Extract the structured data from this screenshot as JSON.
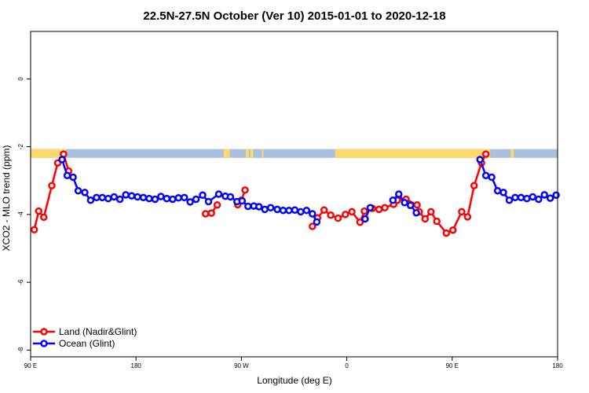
{
  "chart_data": {
    "type": "line",
    "title": "22.5N-27.5N October (Ver 10)   2015-01-01 to 2020-12-18",
    "xlabel": "Longitude (deg E)",
    "ylabel": "XCO2 - MLO trend (ppm)",
    "xlim": [
      90,
      450
    ],
    "ylim": [
      -8.2,
      1.4
    ],
    "x_ticks": [
      {
        "value": 90,
        "label": "90 E"
      },
      {
        "value": 162,
        "label": "180"
      },
      {
        "value": 234,
        "label": "90 W"
      },
      {
        "value": 306,
        "label": "0"
      },
      {
        "value": 378,
        "label": "90 E"
      },
      {
        "value": 450,
        "label": "180"
      }
    ],
    "y_ticks": [
      {
        "value": 0,
        "label": "0"
      },
      {
        "value": -2,
        "label": "-2"
      },
      {
        "value": -4,
        "label": "-4"
      },
      {
        "value": -6,
        "label": "-6"
      },
      {
        "value": -8,
        "label": "-8"
      }
    ],
    "land_band": {
      "y_top": -2.07,
      "y_bottom": -2.33,
      "ocean_color": "#a9c0de",
      "land_color": "#ffd96b",
      "land_ranges": [
        [
          90,
          114
        ],
        [
          222,
          226
        ],
        [
          237,
          239
        ],
        [
          240,
          242
        ],
        [
          248,
          249
        ],
        [
          298,
          370
        ],
        [
          370,
          378
        ],
        [
          378,
          404
        ],
        [
          418,
          420
        ]
      ]
    },
    "legend_position": "bottom-left",
    "series": [
      {
        "name": "Land (Nadir&Glint)",
        "color": "#ff0000",
        "x": [
          92.5,
          95.5,
          99.0,
          104.5,
          108.5,
          112.5,
          116.0,
          209.5,
          213.5,
          217.5,
          231.5,
          234.0,
          236.5,
          282.5,
          286.0,
          290.5,
          295.0,
          300.0,
          305.0,
          309.5,
          315.0,
          318.0,
          323.5,
          328.0,
          332.0,
          338.0,
          340.5,
          346.5,
          354.0,
          355.5,
          359.5,
          363.5,
          367.5,
          374.0,
          378.5,
          384.5,
          388.5,
          393.0,
          398.0,
          401.0
        ],
        "y": [
          -4.45,
          -3.9,
          -4.08,
          -3.15,
          -2.48,
          -2.22,
          -2.72,
          -3.98,
          -3.96,
          -3.72,
          -3.71,
          -3.58,
          -3.28,
          -4.35,
          -4.1,
          -3.87,
          -4.02,
          -4.11,
          -4.0,
          -3.92,
          -4.23,
          -3.9,
          -3.82,
          -3.85,
          -3.8,
          -3.7,
          -3.58,
          -3.55,
          -3.72,
          -3.92,
          -4.13,
          -3.92,
          -4.2,
          -4.55,
          -4.46,
          -3.92,
          -4.07,
          -3.15,
          -2.48,
          -2.22
        ]
      },
      {
        "name": "Ocean (Glint)",
        "color": "#0000ff",
        "x": [
          111.5,
          115.0,
          119.0,
          122.5,
          127.0,
          131.0,
          135.0,
          139.0,
          143.0,
          147.0,
          151.0,
          155.0,
          159.0,
          163.0,
          167.0,
          171.0,
          175.0,
          179.0,
          183.0,
          187.0,
          191.0,
          195.0,
          199.0,
          203.0,
          207.5,
          211.5,
          218.5,
          223.0,
          226.5,
          231.0,
          234.5,
          238.5,
          242.5,
          246.0,
          250.0,
          254.0,
          258.5,
          262.5,
          266.5,
          270.5,
          274.5,
          278.5,
          282.5,
          285.5,
          318.5,
          322.0,
          337.5,
          341.5,
          345.5,
          349.5,
          353.5,
          397.0,
          401.0,
          405.0,
          409.0,
          413.0,
          417.0,
          421.0,
          425.0,
          429.0,
          433.0,
          437.0,
          441.0,
          445.0,
          449.0
        ],
        "y": [
          -2.38,
          -2.85,
          -2.9,
          -3.3,
          -3.35,
          -3.58,
          -3.5,
          -3.5,
          -3.53,
          -3.48,
          -3.55,
          -3.42,
          -3.45,
          -3.48,
          -3.5,
          -3.53,
          -3.55,
          -3.47,
          -3.53,
          -3.55,
          -3.51,
          -3.5,
          -3.63,
          -3.55,
          -3.43,
          -3.62,
          -3.4,
          -3.46,
          -3.48,
          -3.62,
          -3.6,
          -3.76,
          -3.75,
          -3.77,
          -3.85,
          -3.8,
          -3.85,
          -3.88,
          -3.88,
          -3.87,
          -3.92,
          -3.88,
          -3.98,
          -4.22,
          -4.13,
          -3.8,
          -3.58,
          -3.4,
          -3.65,
          -3.73,
          -3.95,
          -2.38,
          -2.85,
          -2.9,
          -3.3,
          -3.35,
          -3.58,
          -3.5,
          -3.5,
          -3.53,
          -3.48,
          -3.55,
          -3.42,
          -3.52,
          -3.43
        ]
      }
    ]
  }
}
